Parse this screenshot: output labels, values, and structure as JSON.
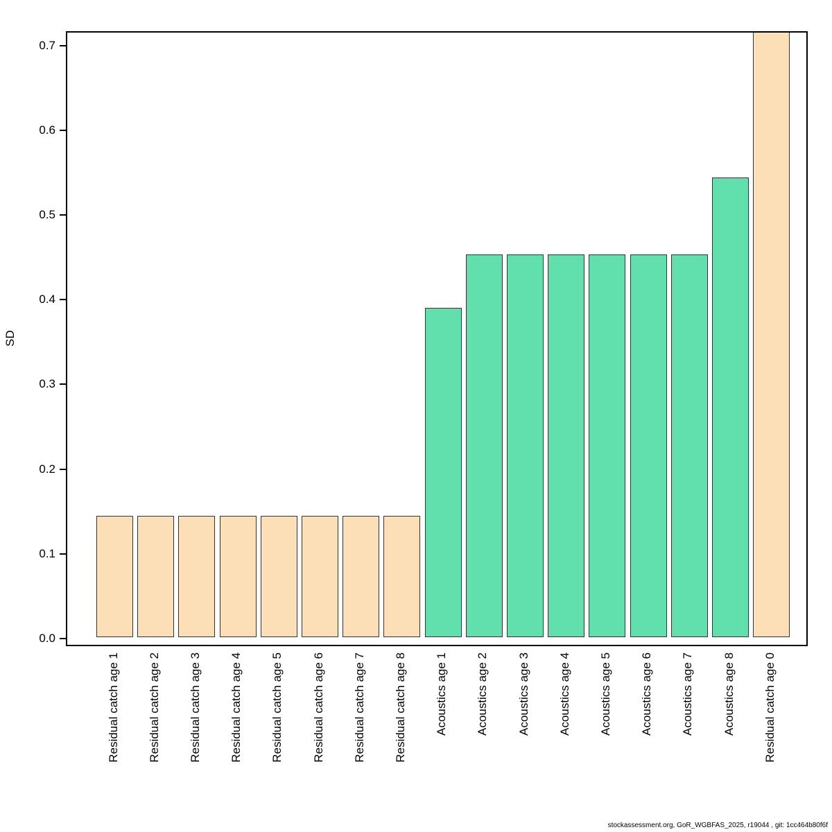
{
  "chart_data": {
    "type": "bar",
    "title": "",
    "xlabel": "",
    "ylabel": "SD",
    "ylim": [
      0,
      0.717
    ],
    "yticks": [
      0.0,
      0.1,
      0.2,
      0.3,
      0.4,
      0.5,
      0.6,
      0.7
    ],
    "grid": false,
    "legend": "none",
    "categories": [
      "Residual catch age 1",
      "Residual catch age 2",
      "Residual catch age 3",
      "Residual catch age 4",
      "Residual catch age 5",
      "Residual catch age 6",
      "Residual catch age 7",
      "Residual catch age 8",
      "Acoustics age 1",
      "Acoustics age 2",
      "Acoustics age 3",
      "Acoustics age 4",
      "Acoustics age 5",
      "Acoustics age 6",
      "Acoustics age 7",
      "Acoustics age 8",
      "Residual catch age 0"
    ],
    "values": [
      0.143,
      0.143,
      0.143,
      0.143,
      0.143,
      0.143,
      0.143,
      0.143,
      0.389,
      0.452,
      0.452,
      0.452,
      0.452,
      0.452,
      0.452,
      0.543,
      0.717
    ],
    "groups": [
      "residual-catch",
      "residual-catch",
      "residual-catch",
      "residual-catch",
      "residual-catch",
      "residual-catch",
      "residual-catch",
      "residual-catch",
      "acoustics",
      "acoustics",
      "acoustics",
      "acoustics",
      "acoustics",
      "acoustics",
      "acoustics",
      "acoustics",
      "residual-catch"
    ],
    "group_colors": {
      "residual-catch": "#FCDFB6",
      "acoustics": "#61DFAC"
    },
    "bar_border_color": "#333333",
    "axis_color": "#000000"
  },
  "footer": {
    "text": "stockassessment.org, GoR_WGBFAS_2025, r19044 , git: 1cc464b80f6f"
  }
}
